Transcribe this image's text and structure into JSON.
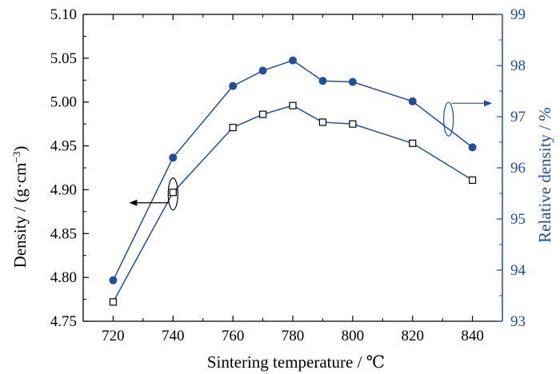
{
  "chart_data": {
    "type": "line",
    "xlabel": "Sintering temperature / ℃",
    "ylabel_left": "Density / (g·cm⁻³)",
    "ylabel_left_base": "Density / (g·cm",
    "ylabel_left_sup": "−3",
    "ylabel_left_end": ")",
    "ylabel_right": "Relative density / %",
    "xlim": [
      710,
      850
    ],
    "ylim_left": [
      4.75,
      5.1
    ],
    "ylim_right": [
      93,
      99
    ],
    "x_ticks": [
      "720",
      "740",
      "760",
      "780",
      "800",
      "820",
      "840"
    ],
    "y_left_ticks": [
      "4.75",
      "4.80",
      "4.85",
      "4.90",
      "4.95",
      "5.00",
      "5.05",
      "5.10"
    ],
    "y_right_ticks": [
      "93",
      "94",
      "95",
      "96",
      "97",
      "98",
      "99"
    ],
    "grid": false,
    "colors": {
      "axis_left": "#000000",
      "axis_right": "#1f4e9c",
      "series_line": "#1f4e9c",
      "marker_fill": "#1f4e9c"
    },
    "series": [
      {
        "axis": "left",
        "marker": "open-square",
        "x": [
          720,
          740,
          760,
          770,
          780,
          790,
          800,
          820,
          840
        ],
        "y": [
          4.772,
          4.897,
          4.971,
          4.986,
          4.996,
          4.977,
          4.975,
          4.953,
          4.911
        ]
      },
      {
        "axis": "right",
        "marker": "filled-circle",
        "x": [
          720,
          740,
          760,
          770,
          780,
          790,
          800,
          820,
          840
        ],
        "y": [
          93.8,
          96.2,
          97.6,
          97.9,
          98.1,
          97.7,
          97.68,
          97.3,
          96.4
        ]
      }
    ]
  }
}
